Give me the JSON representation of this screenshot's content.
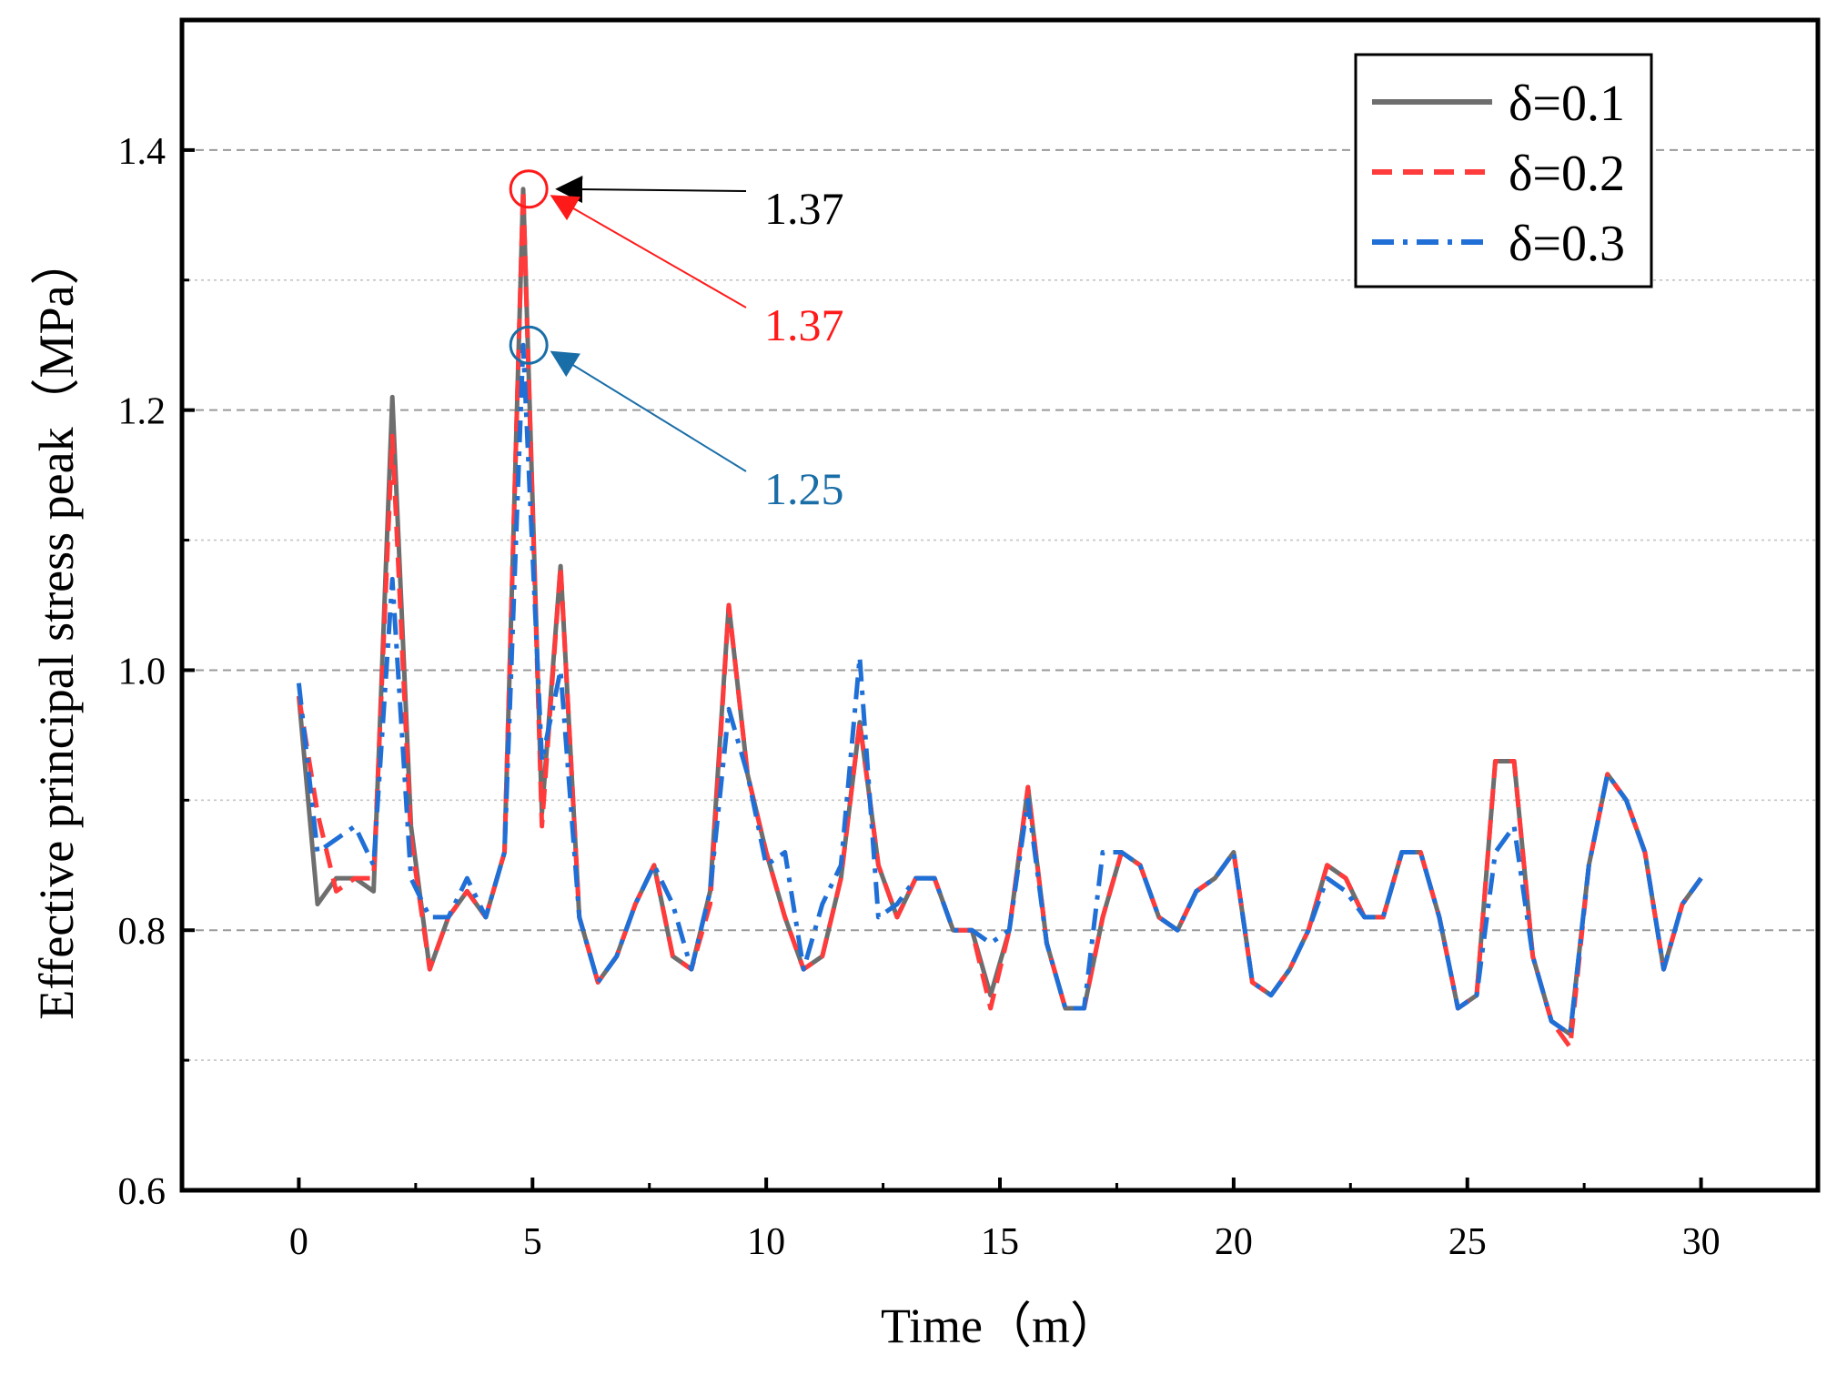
{
  "chart_data": {
    "type": "line",
    "title": "",
    "xlabel": "Time（m）",
    "ylabel": "Effective principal stress peak（MPa）",
    "xlim": [
      -2.5,
      32.5
    ],
    "ylim": [
      0.6,
      1.5
    ],
    "xticks": [
      0,
      5,
      10,
      15,
      20,
      25,
      30
    ],
    "xtick_labels": [
      "0",
      "5",
      "10",
      "15",
      "20",
      "25",
      "30"
    ],
    "yticks": [
      0.6,
      0.8,
      1.0,
      1.2,
      1.4
    ],
    "ytick_labels": [
      "0.6",
      "0.8",
      "1.0",
      "1.2",
      "1.4"
    ],
    "grid": "horizontal dashed",
    "legend_position": "top-right",
    "series": [
      {
        "name": "δ=0.1",
        "color": "#6e6e6e",
        "dash": "solid",
        "x": [
          0,
          0.4,
          0.8,
          1.2,
          1.6,
          2.0,
          2.4,
          2.8,
          3.2,
          3.6,
          4.0,
          4.4,
          4.8,
          5.2,
          5.6,
          6.0,
          6.4,
          6.8,
          7.2,
          7.6,
          8.0,
          8.4,
          8.8,
          9.2,
          9.6,
          10.0,
          10.4,
          10.8,
          11.2,
          11.6,
          12.0,
          12.4,
          12.8,
          13.2,
          13.6,
          14.0,
          14.4,
          14.8,
          15.2,
          15.6,
          16.0,
          16.4,
          16.8,
          17.2,
          17.6,
          18.0,
          18.4,
          18.8,
          19.2,
          19.6,
          20.0,
          20.4,
          20.8,
          21.2,
          21.6,
          22.0,
          22.4,
          22.8,
          23.2,
          23.6,
          24.0,
          24.4,
          24.8,
          25.2,
          25.6,
          26.0,
          26.4,
          26.8,
          27.2,
          27.6,
          28.0,
          28.4,
          28.8,
          29.2,
          29.6,
          30.0
        ],
        "y": [
          0.98,
          0.82,
          0.84,
          0.84,
          0.83,
          1.21,
          0.88,
          0.77,
          0.81,
          0.83,
          0.81,
          0.86,
          1.37,
          0.89,
          1.08,
          0.81,
          0.76,
          0.78,
          0.82,
          0.85,
          0.78,
          0.77,
          0.83,
          1.05,
          0.92,
          0.86,
          0.81,
          0.77,
          0.78,
          0.84,
          0.96,
          0.85,
          0.81,
          0.84,
          0.84,
          0.8,
          0.8,
          0.75,
          0.8,
          0.91,
          0.79,
          0.74,
          0.74,
          0.81,
          0.86,
          0.85,
          0.81,
          0.8,
          0.83,
          0.84,
          0.86,
          0.76,
          0.75,
          0.77,
          0.8,
          0.85,
          0.84,
          0.81,
          0.81,
          0.86,
          0.86,
          0.81,
          0.74,
          0.75,
          0.93,
          0.93,
          0.78,
          0.73,
          0.72,
          0.85,
          0.92,
          0.9,
          0.86,
          0.77,
          0.82,
          0.84
        ]
      },
      {
        "name": "δ=0.2",
        "color": "#ff3b3b",
        "dash": "dashed",
        "x": [
          0,
          0.4,
          0.8,
          1.2,
          1.6,
          2.0,
          2.4,
          2.8,
          3.2,
          3.6,
          4.0,
          4.4,
          4.8,
          5.2,
          5.6,
          6.0,
          6.4,
          6.8,
          7.2,
          7.6,
          8.0,
          8.4,
          8.8,
          9.2,
          9.6,
          10.0,
          10.4,
          10.8,
          11.2,
          11.6,
          12.0,
          12.4,
          12.8,
          13.2,
          13.6,
          14.0,
          14.4,
          14.8,
          15.2,
          15.6,
          16.0,
          16.4,
          16.8,
          17.2,
          17.6,
          18.0,
          18.4,
          18.8,
          19.2,
          19.6,
          20.0,
          20.4,
          20.8,
          21.2,
          21.6,
          22.0,
          22.4,
          22.8,
          23.2,
          23.6,
          24.0,
          24.4,
          24.8,
          25.2,
          25.6,
          26.0,
          26.4,
          26.8,
          27.2,
          27.6,
          28.0,
          28.4,
          28.8,
          29.2,
          29.6,
          30.0
        ],
        "y": [
          0.98,
          0.89,
          0.83,
          0.84,
          0.84,
          1.18,
          0.87,
          0.77,
          0.81,
          0.83,
          0.81,
          0.86,
          1.37,
          0.88,
          1.08,
          0.81,
          0.76,
          0.78,
          0.82,
          0.85,
          0.78,
          0.77,
          0.82,
          1.05,
          0.92,
          0.86,
          0.81,
          0.77,
          0.78,
          0.84,
          0.96,
          0.85,
          0.81,
          0.84,
          0.84,
          0.8,
          0.8,
          0.74,
          0.8,
          0.91,
          0.79,
          0.74,
          0.74,
          0.81,
          0.86,
          0.85,
          0.81,
          0.8,
          0.83,
          0.84,
          0.86,
          0.76,
          0.75,
          0.77,
          0.8,
          0.85,
          0.84,
          0.81,
          0.81,
          0.86,
          0.86,
          0.81,
          0.74,
          0.75,
          0.93,
          0.93,
          0.78,
          0.73,
          0.71,
          0.85,
          0.92,
          0.9,
          0.86,
          0.77,
          0.82,
          0.84
        ]
      },
      {
        "name": "δ=0.3",
        "color": "#1f6fd6",
        "dash": "dash-dot",
        "x": [
          0,
          0.4,
          0.8,
          1.2,
          1.6,
          2.0,
          2.4,
          2.8,
          3.2,
          3.6,
          4.0,
          4.4,
          4.8,
          5.2,
          5.6,
          6.0,
          6.4,
          6.8,
          7.2,
          7.6,
          8.0,
          8.4,
          8.8,
          9.2,
          9.6,
          10.0,
          10.4,
          10.8,
          11.2,
          11.6,
          12.0,
          12.4,
          12.8,
          13.2,
          13.6,
          14.0,
          14.4,
          14.8,
          15.2,
          15.6,
          16.0,
          16.4,
          16.8,
          17.2,
          17.6,
          18.0,
          18.4,
          18.8,
          19.2,
          19.6,
          20.0,
          20.4,
          20.8,
          21.2,
          21.6,
          22.0,
          22.4,
          22.8,
          23.2,
          23.6,
          24.0,
          24.4,
          24.8,
          25.2,
          25.6,
          26.0,
          26.4,
          26.8,
          27.2,
          27.6,
          28.0,
          28.4,
          28.8,
          29.2,
          29.6,
          30.0
        ],
        "y": [
          0.99,
          0.86,
          0.87,
          0.88,
          0.85,
          1.07,
          0.84,
          0.81,
          0.81,
          0.84,
          0.81,
          0.86,
          1.25,
          0.93,
          1.0,
          0.81,
          0.76,
          0.78,
          0.82,
          0.85,
          0.82,
          0.77,
          0.83,
          0.97,
          0.92,
          0.85,
          0.86,
          0.77,
          0.82,
          0.85,
          1.01,
          0.81,
          0.82,
          0.84,
          0.84,
          0.8,
          0.8,
          0.79,
          0.8,
          0.9,
          0.79,
          0.74,
          0.74,
          0.86,
          0.86,
          0.85,
          0.81,
          0.8,
          0.83,
          0.84,
          0.86,
          0.76,
          0.75,
          0.77,
          0.8,
          0.84,
          0.83,
          0.81,
          0.81,
          0.86,
          0.86,
          0.81,
          0.74,
          0.75,
          0.86,
          0.88,
          0.78,
          0.73,
          0.72,
          0.85,
          0.92,
          0.9,
          0.86,
          0.77,
          0.82,
          0.84
        ]
      }
    ],
    "annotations": [
      {
        "label": "1.37",
        "color": "#000000",
        "target_series": "δ=0.1",
        "x": 4.9,
        "y": 1.37
      },
      {
        "label": "1.37",
        "color": "#ff1a1a",
        "target_series": "δ=0.2",
        "x": 4.9,
        "y": 1.37,
        "circled": true
      },
      {
        "label": "1.25",
        "color": "#1a6ea8",
        "target_series": "δ=0.3",
        "x": 4.9,
        "y": 1.25,
        "circled": true
      }
    ]
  }
}
